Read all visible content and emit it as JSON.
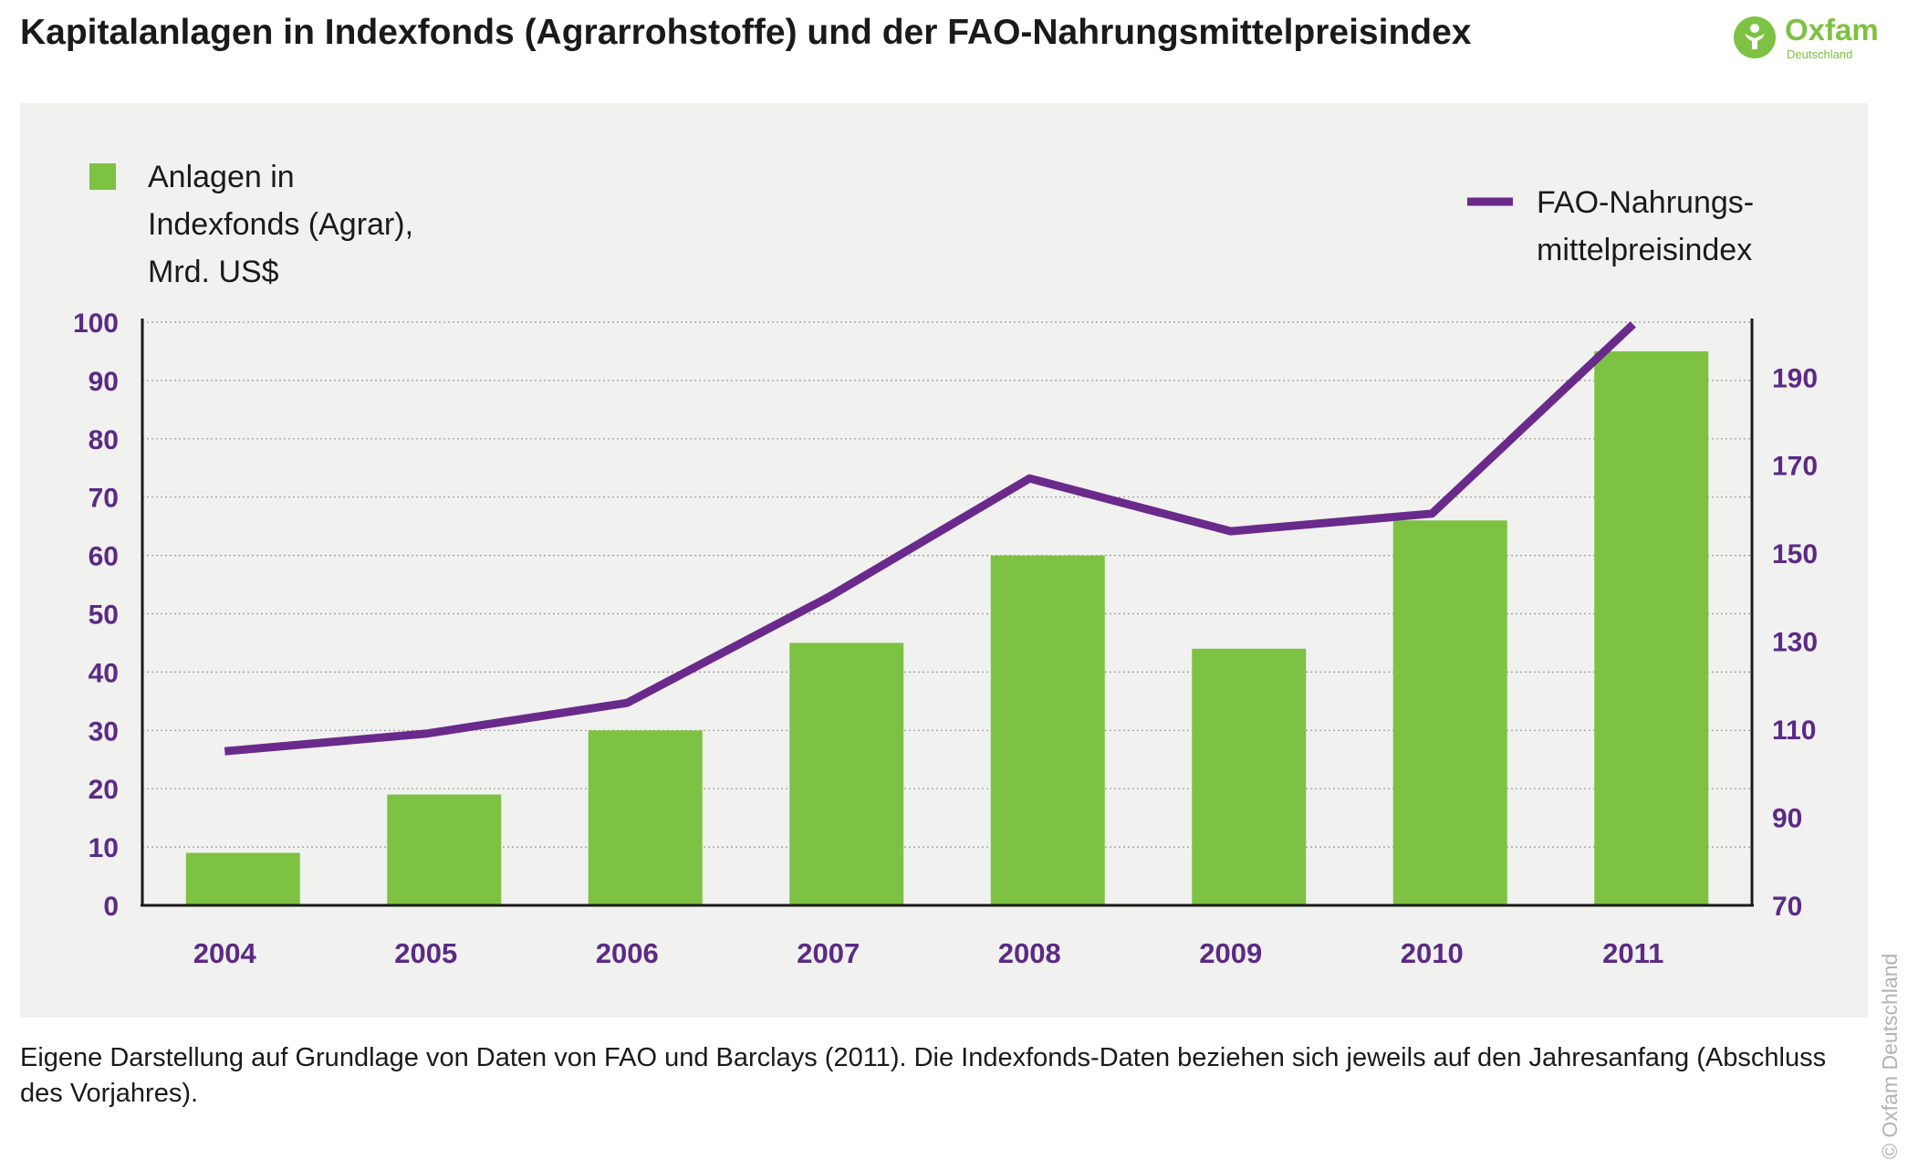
{
  "title": "Kapitalanlagen in Indexfonds (Agrarrohstoffe) und der FAO-Nahrungsmittelpreisindex",
  "logo": {
    "name": "Oxfam",
    "sub": "Deutschland",
    "icon": "oxfam-person-icon"
  },
  "footnote": "Eigene Darstellung auf Grundlage von Daten von FAO und Barclays (2011). Die Indexfonds-Daten beziehen sich jeweils auf den Jahresanfang (Abschluss des Vorjahres).",
  "copyright": "© Oxfam Deutschland",
  "colors": {
    "bar": "#7dc242",
    "line": "#6a2a8c",
    "axis_text": "#5b2a86",
    "grid": "#9a9a9a",
    "panel": "#f1f1f0"
  },
  "chart_data": {
    "type": "bar+line",
    "categories": [
      "2004",
      "2005",
      "2006",
      "2007",
      "2008",
      "2009",
      "2010",
      "2011"
    ],
    "series": [
      {
        "name": "Anlagen in Indexfonds (Agrar), Mrd. US$",
        "legend_lines": [
          "Anlagen in",
          "Indexfonds (Agrar),",
          "Mrd. US$"
        ],
        "type": "bar",
        "axis": "left",
        "values": [
          9,
          19,
          30,
          45,
          60,
          44,
          66,
          95
        ]
      },
      {
        "name": "FAO-Nahrungsmittelpreisindex",
        "legend_lines": [
          "FAO-Nahrungs-",
          "mittelpreisindex"
        ],
        "type": "line",
        "axis": "right",
        "values": [
          105,
          109,
          116,
          140,
          167,
          155,
          159,
          202
        ]
      }
    ],
    "y_left": {
      "range": [
        0,
        100
      ],
      "ticks": [
        "0",
        "10",
        "20",
        "30",
        "40",
        "50",
        "60",
        "70",
        "80",
        "90",
        "100"
      ]
    },
    "y_right": {
      "range": [
        70,
        202.5
      ],
      "ticks": [
        "70",
        "90",
        "110",
        "130",
        "150",
        "170",
        "190"
      ]
    },
    "grid": true,
    "legend": [
      "top-left",
      "top-right"
    ]
  }
}
